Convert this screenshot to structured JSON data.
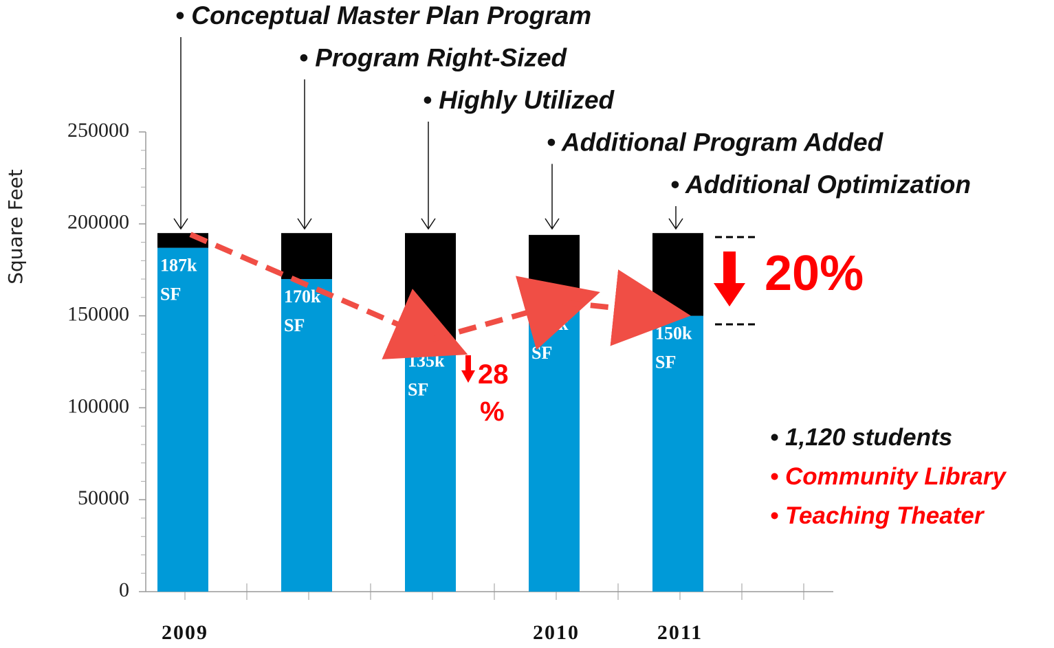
{
  "chart_data": {
    "type": "stacked_bar",
    "y_label": "Square Feet",
    "categories": [
      "2009",
      null,
      null,
      "2010",
      "2011"
    ],
    "series": [
      {
        "color": "#009ad8",
        "values": [
          187000,
          170000,
          135000,
          155000,
          150000
        ],
        "value_labels": [
          "187k SF",
          "170k SF",
          "135k SF",
          "155k SF",
          "150k SF"
        ]
      },
      {
        "color": "#000000",
        "values": [
          8000,
          25000,
          60000,
          39000,
          45000
        ]
      }
    ],
    "annotations": [
      "• Conceptual Master Plan Program",
      "• Program Right-Sized",
      "• Highly Utilized",
      "• Additional Program Added",
      "• Additional Optimization"
    ],
    "reduction_total": "20%",
    "reduction_part": [
      "28",
      "%"
    ],
    "notes": [
      {
        "text": "• 1,120 students",
        "color": "#111111"
      },
      {
        "text": "• Community Library",
        "color": "#ff0000"
      },
      {
        "text": "• Teaching Theater",
        "color": "#ff0000"
      }
    ],
    "ylim": [
      0,
      250000
    ],
    "yticks": [
      0,
      50000,
      100000,
      150000,
      200000,
      250000
    ]
  }
}
